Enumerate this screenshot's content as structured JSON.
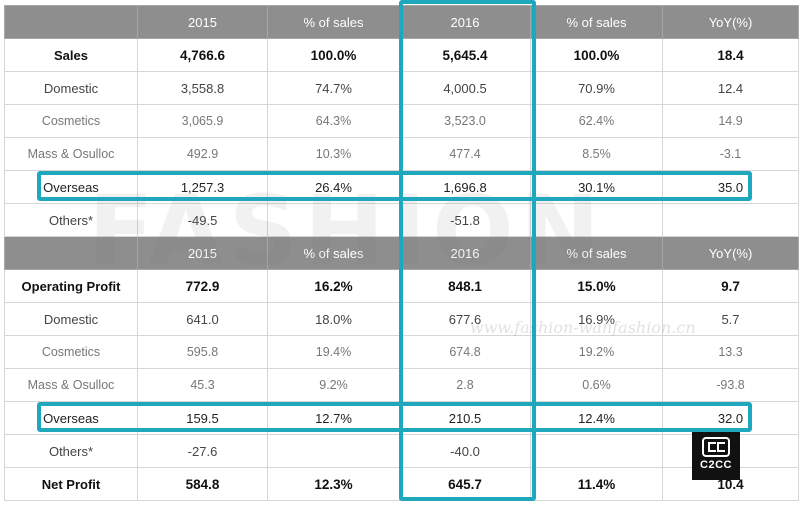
{
  "header_1": [
    "",
    "2015",
    "% of sales",
    "2016",
    "% of sales",
    "YoY(%)"
  ],
  "header_2": [
    "",
    "2015",
    "% of sales",
    "2016",
    "% of sales",
    "YoY(%)"
  ],
  "sales_rows": [
    [
      "Sales",
      "4,766.6",
      "100.0%",
      "5,645.4",
      "100.0%",
      "18.4"
    ],
    [
      "Domestic",
      "3,558.8",
      "74.7%",
      "4,000.5",
      "70.9%",
      "12.4"
    ],
    [
      "Cosmetics",
      "3,065.9",
      "64.3%",
      "3,523.0",
      "62.4%",
      "14.9"
    ],
    [
      "Mass & Osulloc",
      "492.9",
      "10.3%",
      "477.4",
      "8.5%",
      "-3.1"
    ],
    [
      "Overseas",
      "1,257.3",
      "26.4%",
      "1,696.8",
      "30.1%",
      "35.0"
    ],
    [
      "Others*",
      "-49.5",
      "",
      "-51.8",
      "",
      ""
    ]
  ],
  "profit_rows": [
    [
      "Operating Profit",
      "772.9",
      "16.2%",
      "848.1",
      "15.0%",
      "9.7"
    ],
    [
      "Domestic",
      "641.0",
      "18.0%",
      "677.6",
      "16.9%",
      "5.7"
    ],
    [
      "Cosmetics",
      "595.8",
      "19.4%",
      "674.8",
      "19.2%",
      "13.3"
    ],
    [
      "Mass & Osulloc",
      "45.3",
      "9.2%",
      "2.8",
      "0.6%",
      "-93.8"
    ],
    [
      "Overseas",
      "159.5",
      "12.7%",
      "210.5",
      "12.4%",
      "32.0"
    ],
    [
      "Others*",
      "-27.6",
      "",
      "-40.0",
      "",
      ""
    ],
    [
      "Net Profit",
      "584.8",
      "12.3%",
      "645.7",
      "11.4%",
      "10.4"
    ]
  ],
  "watermark": {
    "text": "FASHION",
    "url_text": "www.fashion-wanfashion.cn"
  },
  "logo": {
    "text": "C2CC"
  },
  "colors": {
    "header_bg": "#8e8e8e",
    "highlight": "#1fa7bd"
  }
}
